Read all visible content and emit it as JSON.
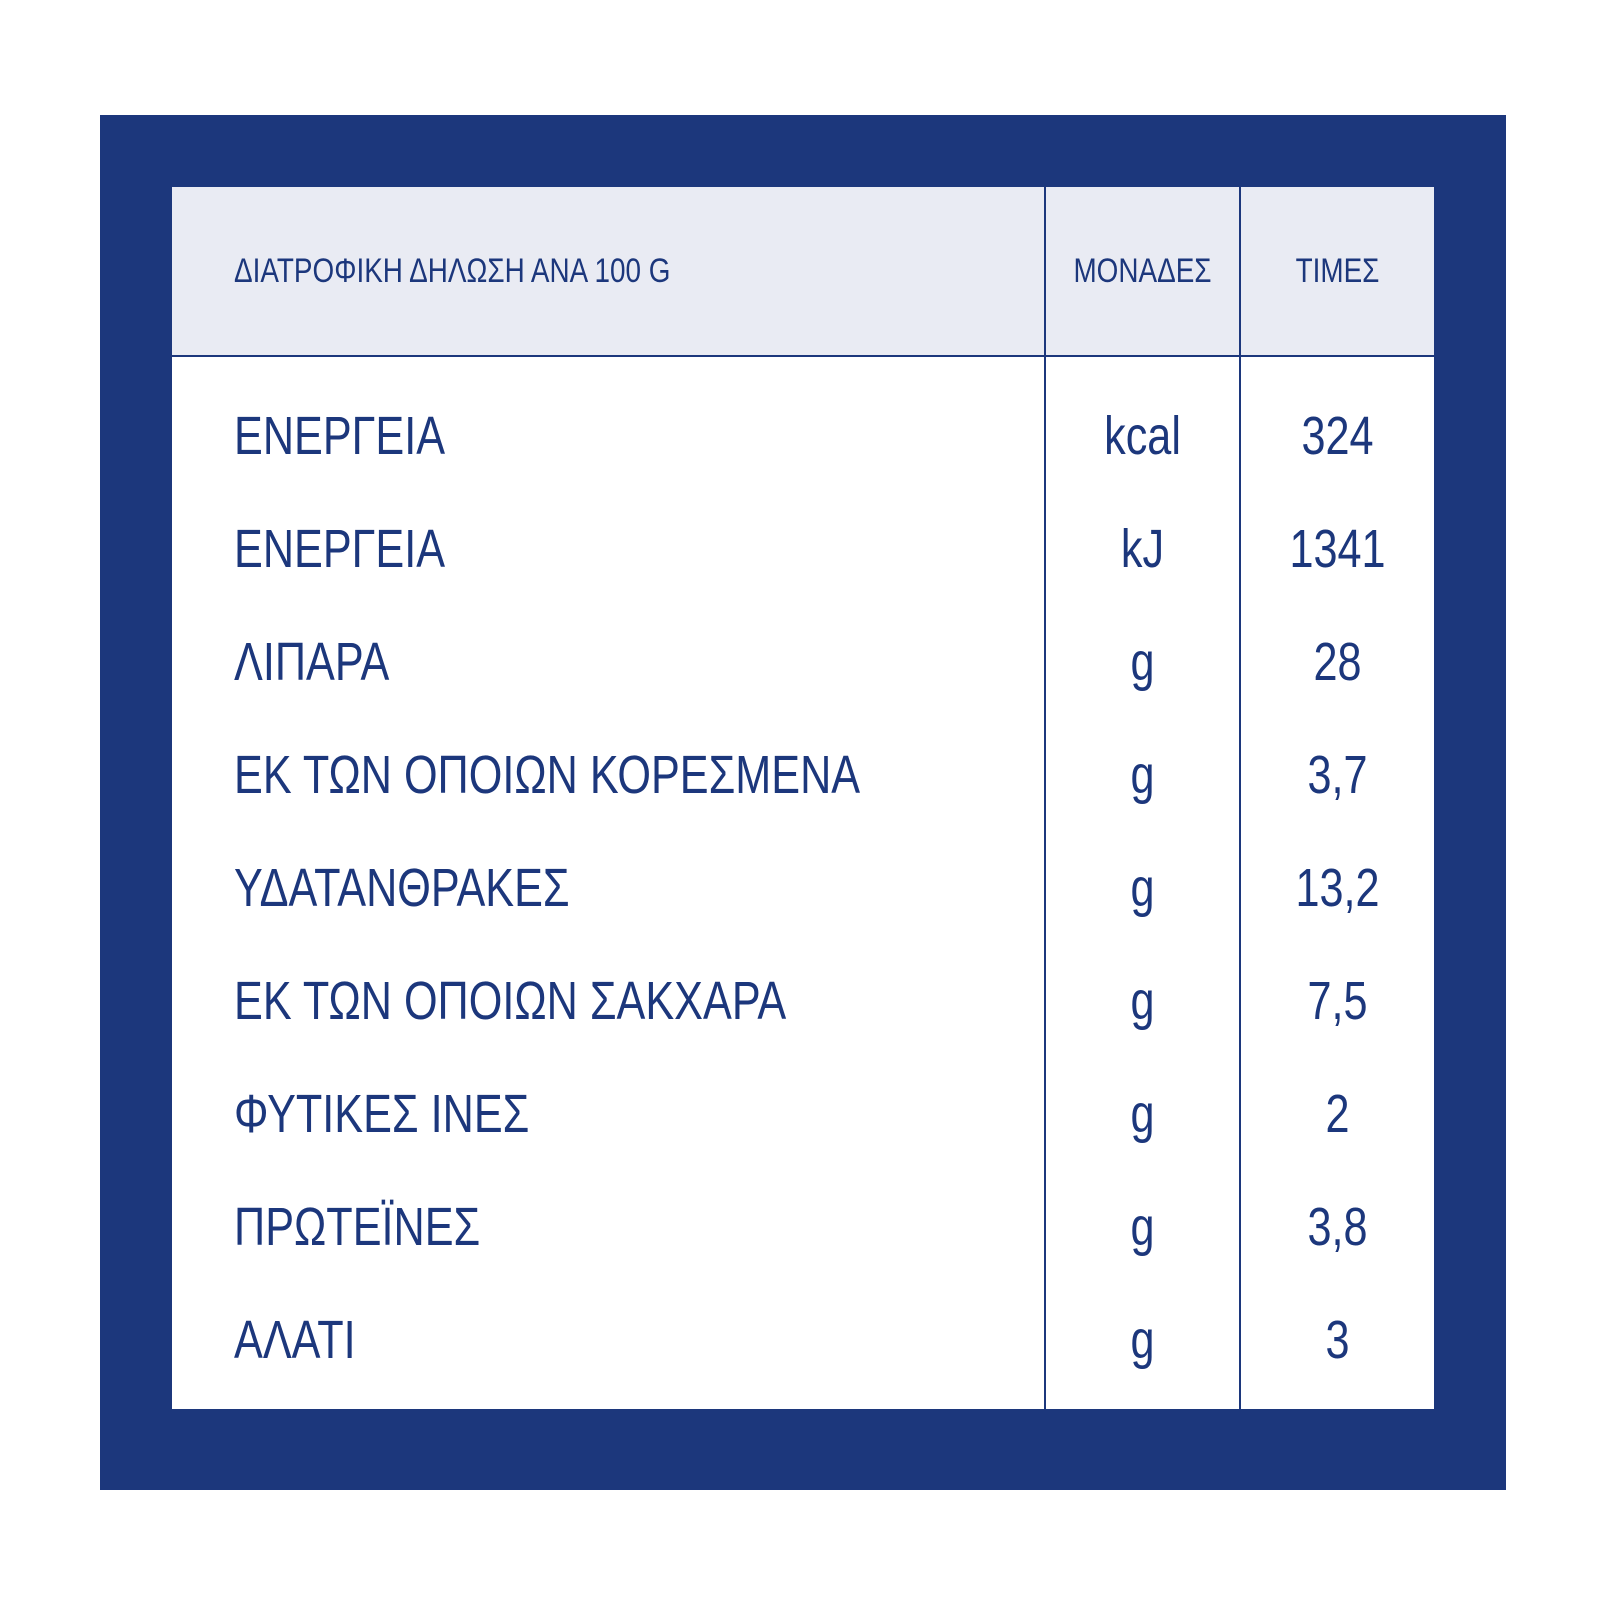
{
  "colors": {
    "frame": "#1c377c",
    "header_bg": "#e9ebf3",
    "text": "#1c377c",
    "panel_bg": "#ffffff"
  },
  "table": {
    "header": {
      "name": "ΔΙΑΤΡΟΦΙΚΗ ΔΗΛΩΣΗ ΑΝΑ 100 G",
      "unit": "ΜΟΝΑΔΕΣ",
      "value": "ΤΙΜΕΣ"
    },
    "rows": [
      {
        "name": "ΕΝΕΡΓΕΙΑ",
        "unit": "kcal",
        "value": "324"
      },
      {
        "name": "ΕΝΕΡΓΕΙΑ",
        "unit": "kJ",
        "value": "1341"
      },
      {
        "name": "ΛΙΠΑΡΑ",
        "unit": "g",
        "value": "28"
      },
      {
        "name": "ΕΚ ΤΩΝ ΟΠΟΙΩΝ ΚΟΡΕΣΜΕΝΑ",
        "unit": "g",
        "value": "3,7"
      },
      {
        "name": "ΥΔΑΤΑΝΘΡΑΚΕΣ",
        "unit": "g",
        "value": "13,2"
      },
      {
        "name": "ΕΚ ΤΩΝ ΟΠΟΙΩΝ ΣΑΚΧΑΡΑ",
        "unit": "g",
        "value": "7,5"
      },
      {
        "name": "ΦΥΤΙΚΕΣ ΙΝΕΣ",
        "unit": "g",
        "value": "2"
      },
      {
        "name": "ΠΡΩΤΕΪΝΕΣ",
        "unit": "g",
        "value": "3,8"
      },
      {
        "name": "ΑΛΑΤΙ",
        "unit": "g",
        "value": "3"
      }
    ]
  }
}
